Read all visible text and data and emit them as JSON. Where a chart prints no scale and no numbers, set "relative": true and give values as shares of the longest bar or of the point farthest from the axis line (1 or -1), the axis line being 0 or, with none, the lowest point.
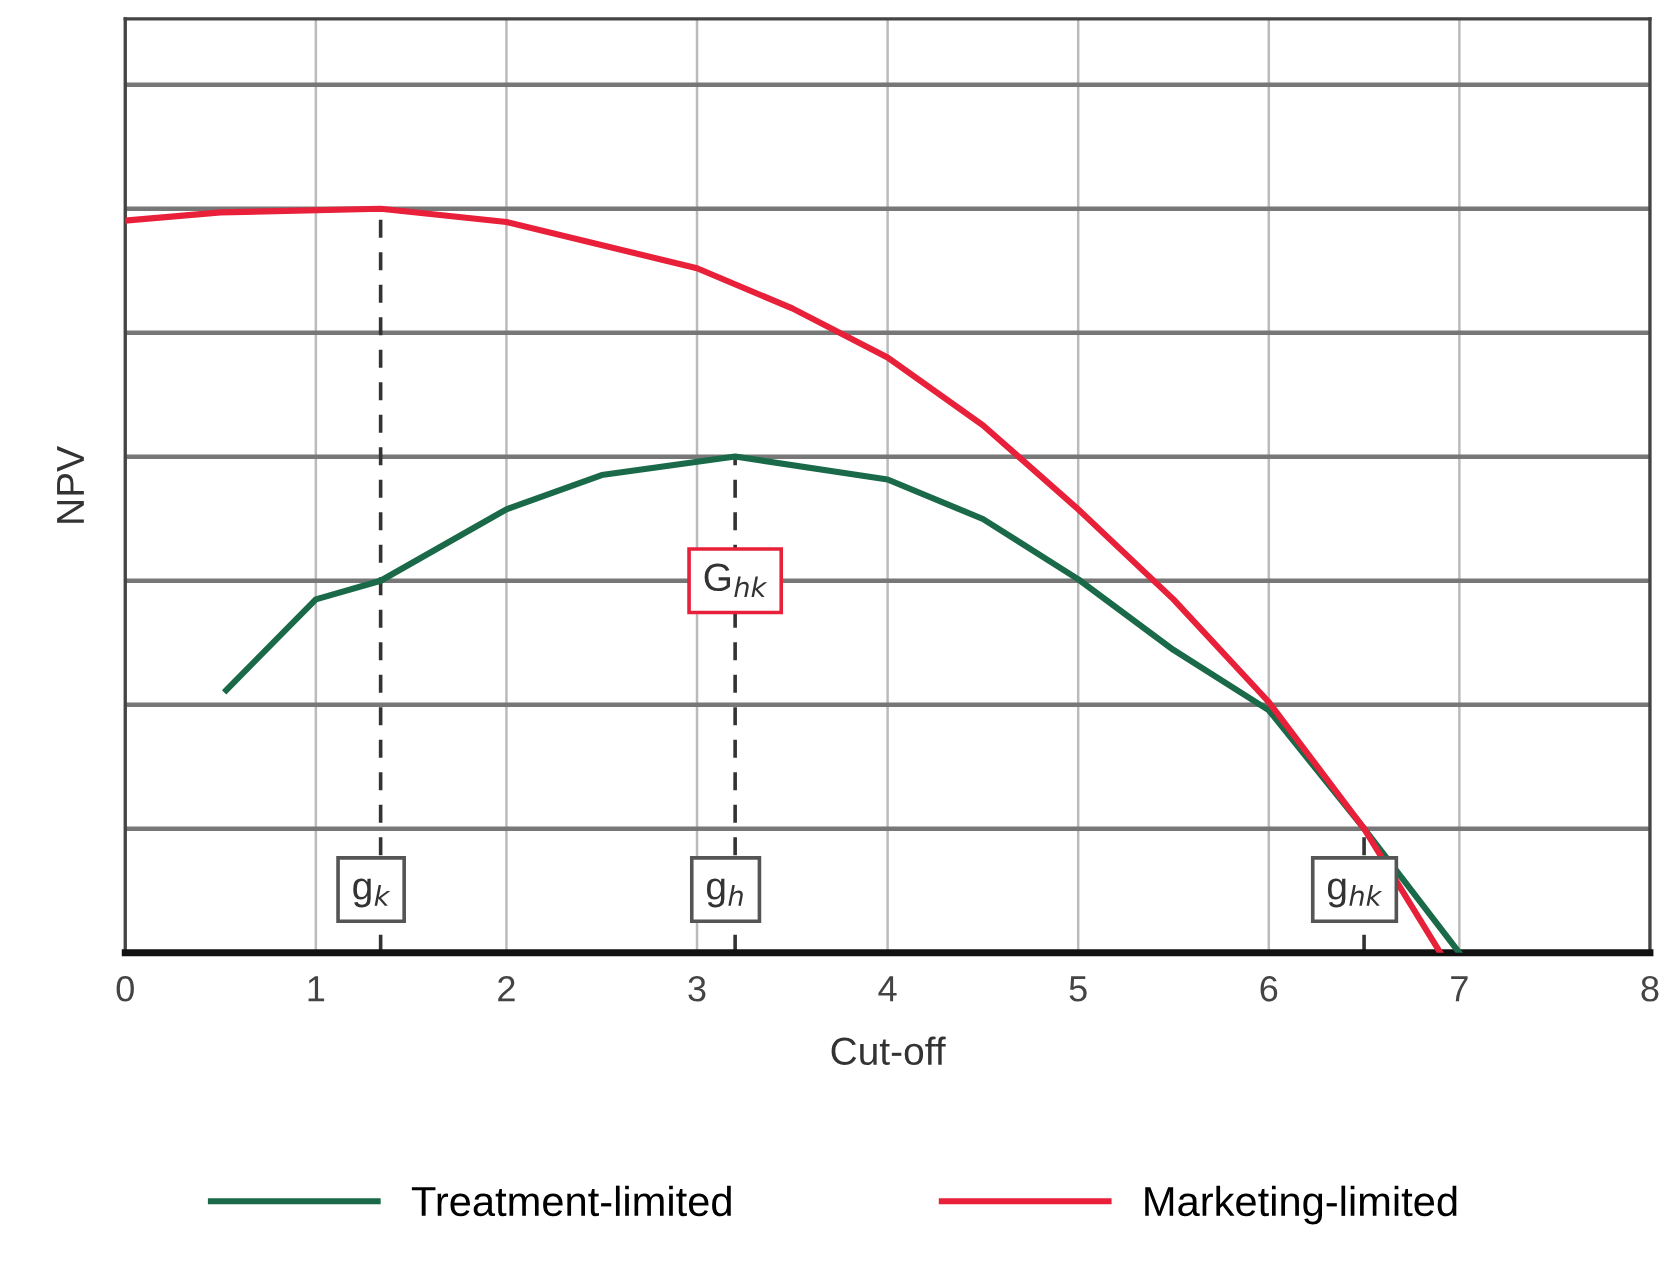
{
  "chart_data": {
    "type": "line",
    "xlabel": "Cut-off",
    "ylabel": "NPV",
    "relative": true,
    "xlim": [
      0,
      8
    ],
    "xticks": [
      0,
      1,
      2,
      3,
      4,
      5,
      6,
      7,
      8
    ],
    "tick_labels": "x",
    "grid": true,
    "legend": "bottom",
    "marker": "none",
    "line_style": "solid",
    "series": [
      {
        "name": "Treatment-limited",
        "color": "#1a6a4a",
        "x": [
          0.53,
          1,
          1.34,
          2,
          2.5,
          3.2,
          4,
          4.5,
          5,
          5.5,
          6,
          6.5,
          7
        ],
        "values": [
          0.353,
          0.475,
          0.5,
          0.596,
          0.642,
          0.667,
          0.636,
          0.583,
          0.502,
          0.407,
          0.326,
          0.167,
          0
        ]
      },
      {
        "name": "Marketing-limited",
        "color": "#e8203a",
        "x": [
          0,
          0.5,
          1.34,
          2,
          3,
          3.5,
          4,
          4.5,
          5,
          5.5,
          6,
          6.5,
          6.9
        ],
        "values": [
          0.984,
          0.995,
          1.0,
          0.982,
          0.92,
          0.866,
          0.8,
          0.709,
          0.596,
          0.475,
          0.337,
          0.167,
          0
        ]
      }
    ],
    "annotations": [
      {
        "text": "g$_{k}$",
        "x": 1.34,
        "y": 1.0
      },
      {
        "text": "g$_{h}$",
        "x": 3.2,
        "y": 0.667
      },
      {
        "text": "g$_{hk}$",
        "x": 6.5,
        "y": 0.167
      },
      "G$_{hk}$"
    ]
  }
}
